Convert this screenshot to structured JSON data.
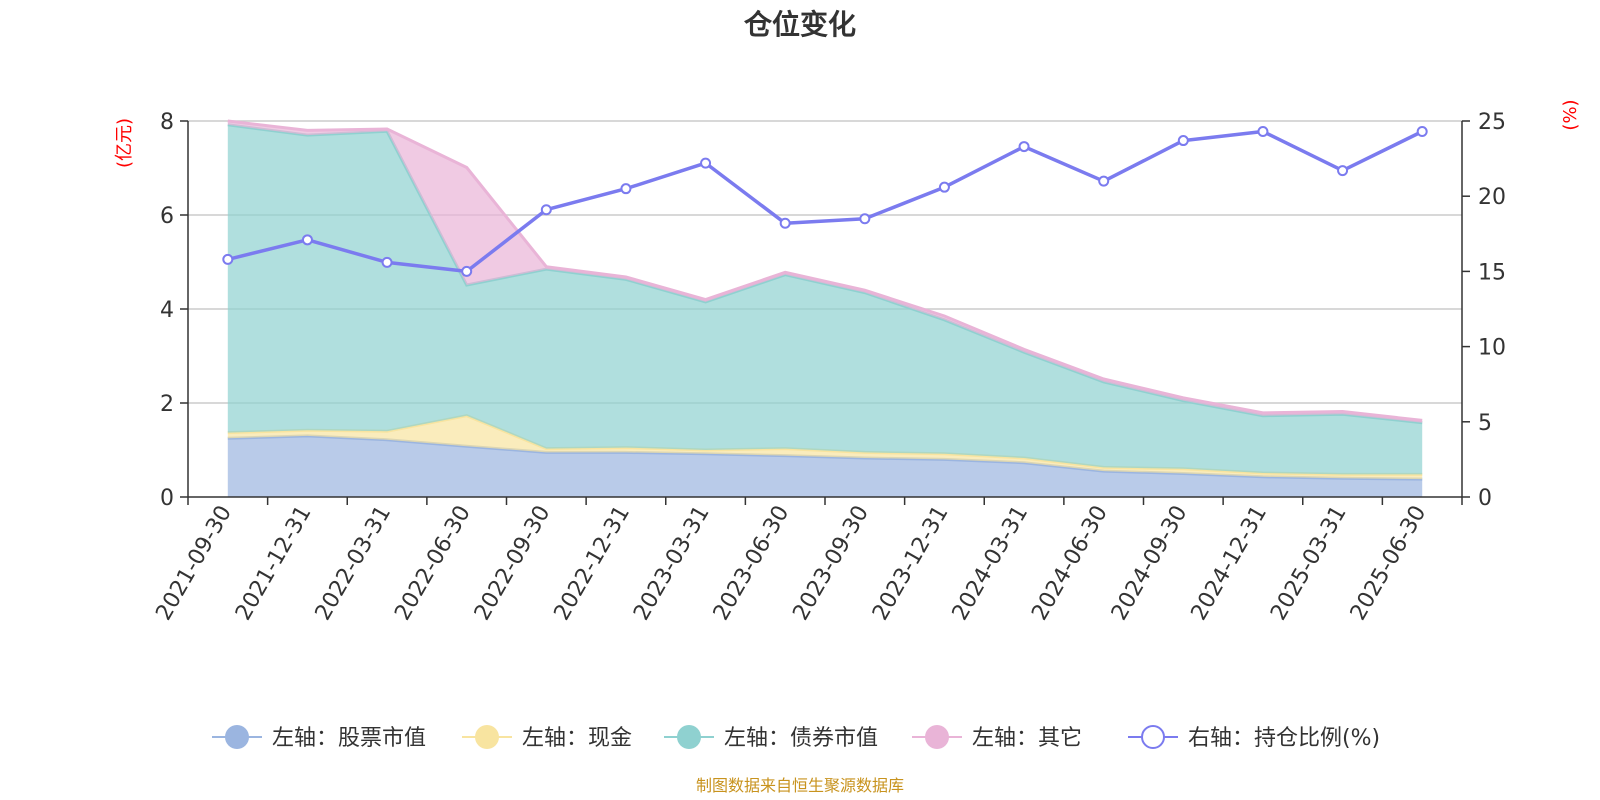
{
  "chart_data": {
    "type": "area",
    "title": "仓位变化",
    "y_left_unit": "(亿元)",
    "y_right_unit": "(%)",
    "y_left_lim": [
      0,
      8
    ],
    "y_left_ticks": [
      "0",
      "2",
      "4",
      "6",
      "8"
    ],
    "y_right_lim": [
      0,
      25
    ],
    "y_right_ticks": [
      "0",
      "5",
      "10",
      "15",
      "20",
      "25"
    ],
    "grid": true,
    "legend_position": "bottom",
    "categories": [
      "2021-09-30",
      "2021-12-31",
      "2022-03-31",
      "2022-06-30",
      "2022-09-30",
      "2022-12-31",
      "2023-03-31",
      "2023-06-30",
      "2023-09-30",
      "2023-12-31",
      "2024-03-31",
      "2024-06-30",
      "2024-09-30",
      "2024-12-31",
      "2025-03-31",
      "2025-06-30"
    ],
    "series": [
      {
        "name": "左轴：股票市值",
        "axis": "left",
        "kind": "stacked-area",
        "color": "#9bb5e0",
        "values": [
          1.25,
          1.3,
          1.22,
          1.08,
          0.95,
          0.95,
          0.92,
          0.88,
          0.83,
          0.8,
          0.73,
          0.55,
          0.5,
          0.43,
          0.4,
          0.38
        ]
      },
      {
        "name": "左轴：现金",
        "axis": "left",
        "kind": "stacked-area",
        "color": "#f8e4a0",
        "values": [
          0.12,
          0.12,
          0.18,
          0.65,
          0.08,
          0.1,
          0.08,
          0.15,
          0.12,
          0.12,
          0.1,
          0.08,
          0.1,
          0.08,
          0.08,
          0.1
        ]
      },
      {
        "name": "左轴：债券市值",
        "axis": "left",
        "kind": "stacked-area",
        "color": "#8fd1d0",
        "values": [
          6.55,
          6.28,
          6.38,
          2.78,
          3.82,
          3.58,
          3.15,
          3.7,
          3.4,
          2.85,
          2.25,
          1.82,
          1.45,
          1.22,
          1.28,
          1.1
        ]
      },
      {
        "name": "左轴：其它",
        "axis": "left",
        "kind": "stacked-area",
        "color": "#e9b4d7",
        "values": [
          0.08,
          0.1,
          0.05,
          2.5,
          0.05,
          0.05,
          0.05,
          0.05,
          0.05,
          0.08,
          0.06,
          0.06,
          0.06,
          0.06,
          0.06,
          0.05
        ]
      },
      {
        "name": "右轴：持仓比例(%)",
        "axis": "right",
        "kind": "line",
        "color": "#7b7bef",
        "values": [
          15.8,
          17.1,
          15.6,
          15.0,
          19.1,
          20.5,
          22.2,
          18.2,
          18.5,
          20.6,
          23.3,
          21.0,
          23.7,
          24.3,
          21.7,
          24.3
        ]
      }
    ]
  },
  "source_note": "制图数据来自恒生聚源数据库"
}
